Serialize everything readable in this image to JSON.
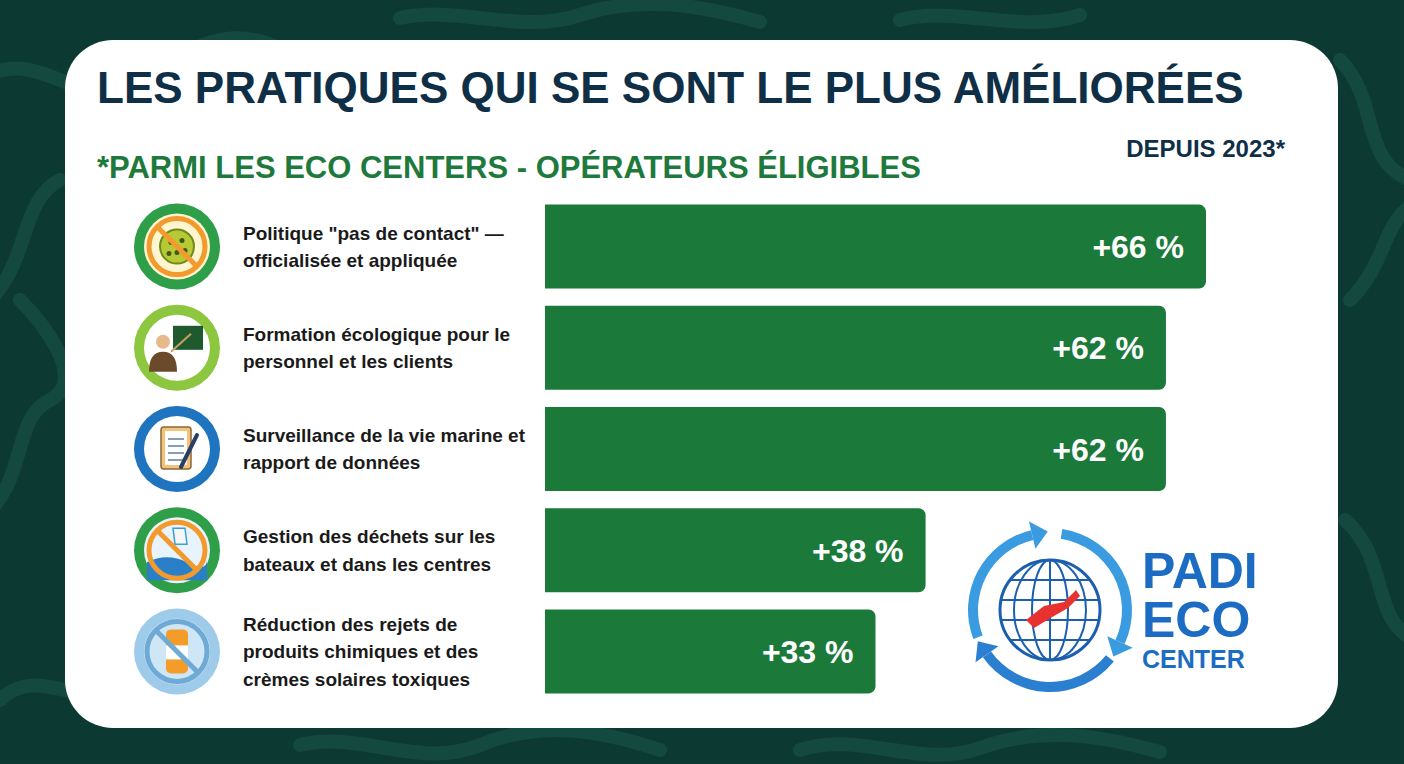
{
  "chart_data": {
    "type": "bar",
    "orientation": "horizontal",
    "title": "LES PRATIQUES QUI SE SONT LE PLUS AMÉLIORÉES",
    "subtitle": "*PARMI LES ECO CENTERS - OPÉRATEURS ÉLIGIBLES",
    "annotations": [
      "DEPUIS 2023*"
    ],
    "categories": [
      "Politique \"pas de contact\" — officialisée et appliquée",
      "Formation écologique pour le personnel et les clients",
      "Surveillance de la vie marine et rapport de données",
      "Gestion des déchets sur les bateaux et dans les centres",
      "Réduction des rejets de produits chimiques et des crèmes solaires toxiques"
    ],
    "values": [
      66,
      62,
      62,
      38,
      33
    ],
    "value_labels": [
      "+66 %",
      "+62 %",
      "+62 %",
      "+38 %",
      "+33 %"
    ],
    "data_labels": true,
    "tick_labels": "y",
    "grid": false,
    "color": "#1b7a3a",
    "logo": [
      "PADI",
      "ECO",
      "CENTER"
    ]
  }
}
